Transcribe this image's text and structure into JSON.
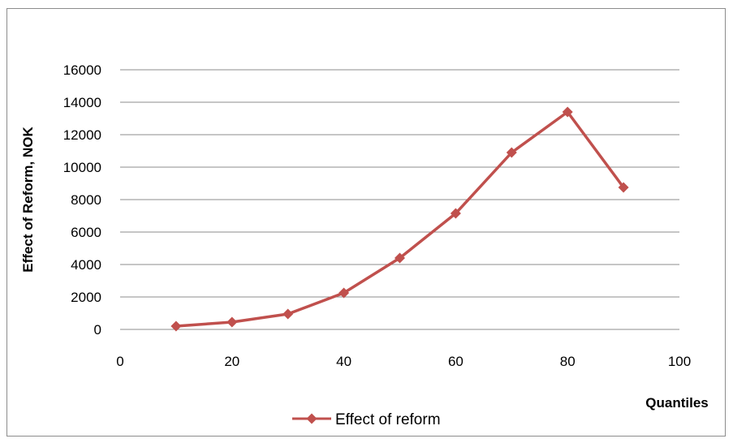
{
  "chart_data": {
    "type": "line",
    "title": "",
    "xlabel": "Quantiles",
    "ylabel": "Effect of Reform, NOK",
    "xlim": [
      0,
      100
    ],
    "ylim": [
      0,
      16000
    ],
    "x_ticks": [
      0,
      20,
      40,
      60,
      80,
      100
    ],
    "y_ticks": [
      0,
      2000,
      4000,
      6000,
      8000,
      10000,
      12000,
      14000,
      16000
    ],
    "grid": "horizontal",
    "legend_position": "bottom",
    "series": [
      {
        "name": "Effect of reform",
        "color": "#c0504d",
        "marker": "diamond",
        "x": [
          10,
          20,
          30,
          40,
          50,
          60,
          70,
          80,
          90
        ],
        "y": [
          200,
          450,
          950,
          2250,
          4400,
          7150,
          10900,
          13400,
          8750
        ]
      }
    ]
  }
}
